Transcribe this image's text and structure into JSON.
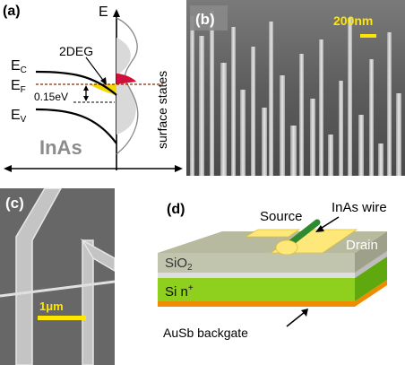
{
  "panel_a": {
    "label": "(a)",
    "energy_axis": "E",
    "ec_main": "E",
    "ec_sub": "C",
    "ef_main": "E",
    "ef_sub": "F",
    "ev_main": "E",
    "ev_sub": "V",
    "twodeg": "2DEG",
    "gap_value": "0.15eV",
    "material": "InAs",
    "surface_states": "surface states",
    "colors": {
      "accumulation": "#f2d900",
      "surface_dos": "#cccccc",
      "filled_states": "#d0103a",
      "fermi_line": "#8b2b00"
    }
  },
  "panel_b": {
    "label": "(b)",
    "scale_bar": "200nm",
    "scale_color": "#ffe600"
  },
  "panel_c": {
    "label": "(c)",
    "scale_bar": "1μm",
    "scale_color": "#ffe600"
  },
  "panel_d": {
    "label": "(d)",
    "source": "Source",
    "drain": "Drain",
    "wire": "InAs wire",
    "sio2_main": "SiO",
    "sio2_sub": "2",
    "si_main": "Si n",
    "si_sup": "+",
    "backgate": "AuSb backgate",
    "colors": {
      "contact": "#ffe87a",
      "wire": "#2f8a2f",
      "sio2": "#c2c5ae",
      "si": "#8fcf1e",
      "aususb": "#f08c00"
    }
  }
}
